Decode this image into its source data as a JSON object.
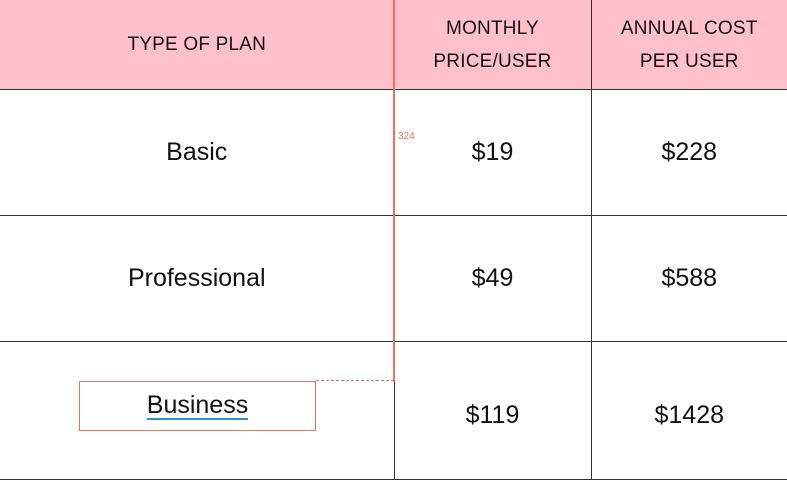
{
  "table": {
    "headers": [
      {
        "line1": "TYPE OF PLAN",
        "line2": ""
      },
      {
        "line1": "MONTHLY",
        "line2": "PRICE/USER"
      },
      {
        "line1": "ANNUAL COST",
        "line2": "PER USER"
      }
    ],
    "rows": [
      {
        "plan": "Basic",
        "monthly": "$19",
        "annual": "$228"
      },
      {
        "plan": "Professional",
        "monthly": "$49",
        "annual": "$588"
      },
      {
        "plan": "Business",
        "monthly": "$119",
        "annual": "$1428"
      }
    ]
  },
  "editor": {
    "guide_label": "324",
    "selected_text": "Business"
  },
  "colors": {
    "header_bg": "#ffc0cb",
    "guide": "#e5735f",
    "underline": "#2b8fd6"
  }
}
